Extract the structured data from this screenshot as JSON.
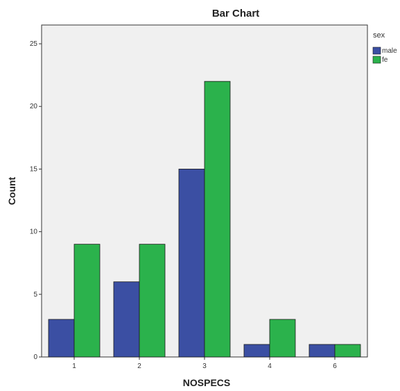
{
  "chart_data": {
    "type": "bar",
    "title": "Bar Chart",
    "xlabel": "NOSPECS",
    "ylabel": "Count",
    "categories": [
      "1",
      "2",
      "3",
      "4",
      "6"
    ],
    "series": [
      {
        "name": "male",
        "values": [
          3,
          6,
          15,
          1,
          1
        ],
        "color": "#3b4fa3"
      },
      {
        "name": "fe",
        "values": [
          9,
          9,
          22,
          3,
          1
        ],
        "color": "#2bb24c"
      }
    ],
    "ylim": [
      0,
      26.5
    ],
    "yticks": [
      0,
      5,
      10,
      15,
      20,
      25
    ],
    "legend_title": "sex",
    "legend_position": "top-right",
    "grid": false,
    "plot_background": "#f0f0f0"
  }
}
